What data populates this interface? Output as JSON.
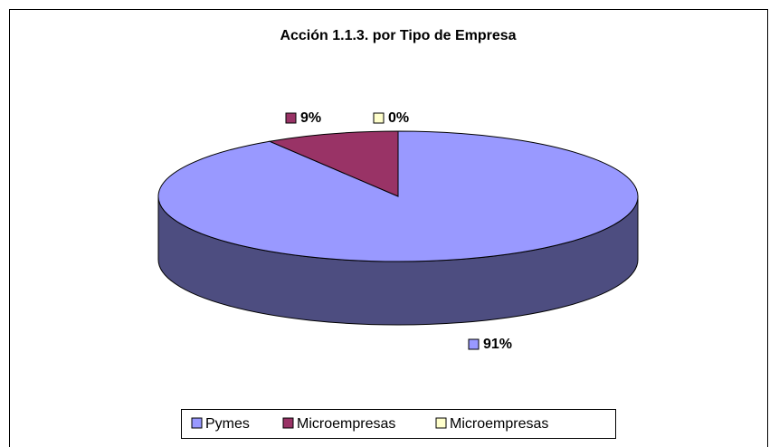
{
  "chart_data": {
    "type": "pie",
    "title": "Acción 1.1.3. por Tipo de Empresa",
    "categories": [
      "Pymes",
      "Microempresas",
      "Microempresas"
    ],
    "values": [
      91,
      9,
      0
    ],
    "value_labels": [
      "91%",
      "9%",
      "0%"
    ],
    "colors": [
      "#9999ff",
      "#993366",
      "#ffffcc"
    ],
    "legend": "bottom"
  }
}
